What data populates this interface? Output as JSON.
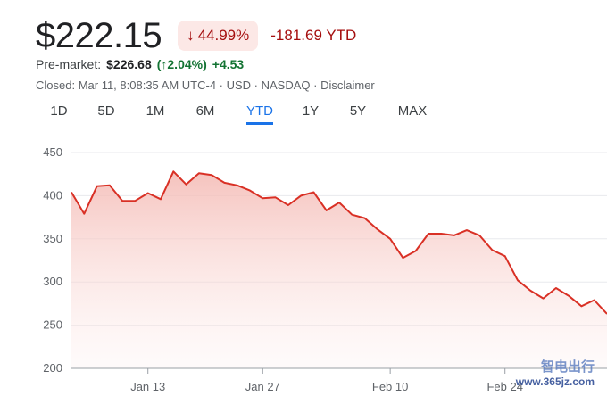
{
  "quote": {
    "price": "$222.15",
    "change_percent": "44.99%",
    "change_arrow": "↓",
    "change_abs": "-181.69 YTD"
  },
  "premarket": {
    "label": "Pre-market:",
    "price": "$226.68",
    "percent": "(↑2.04%)",
    "abs": "+4.53"
  },
  "closed": {
    "text": "Closed: Mar 11, 8:08:35 AM UTC-4 · USD · NASDAQ · ",
    "disclaimer": "Disclaimer"
  },
  "tabs": [
    {
      "label": "1D"
    },
    {
      "label": "5D"
    },
    {
      "label": "1M"
    },
    {
      "label": "6M"
    },
    {
      "label": "YTD"
    },
    {
      "label": "1Y"
    },
    {
      "label": "5Y"
    },
    {
      "label": "MAX"
    }
  ],
  "active_tab": "YTD",
  "colors": {
    "line": "#d93025",
    "fill_top": "#f4b8b2",
    "negative_text": "#a50e0e",
    "positive_text": "#137333",
    "accent": "#1a73e8"
  },
  "watermark": {
    "brand": "智电出行",
    "site": "www.365jz.com"
  },
  "chart_data": {
    "type": "area",
    "ylim": [
      200,
      450
    ],
    "yticks": [
      200,
      250,
      300,
      350,
      400,
      450
    ],
    "xticks": [
      "Jan 13",
      "Jan 27",
      "Feb 10",
      "Feb 24"
    ],
    "grid": true,
    "points": [
      {
        "date": "Jan 2",
        "value": 404
      },
      {
        "date": "Jan 3",
        "value": 379
      },
      {
        "date": "Jan 6",
        "value": 411
      },
      {
        "date": "Jan 7",
        "value": 412
      },
      {
        "date": "Jan 8",
        "value": 394
      },
      {
        "date": "Jan 10",
        "value": 394
      },
      {
        "date": "Jan 13",
        "value": 403
      },
      {
        "date": "Jan 14",
        "value": 396
      },
      {
        "date": "Jan 15",
        "value": 428
      },
      {
        "date": "Jan 16",
        "value": 413
      },
      {
        "date": "Jan 17",
        "value": 426
      },
      {
        "date": "Jan 21",
        "value": 424
      },
      {
        "date": "Jan 22",
        "value": 415
      },
      {
        "date": "Jan 23",
        "value": 412
      },
      {
        "date": "Jan 24",
        "value": 406
      },
      {
        "date": "Jan 27",
        "value": 397
      },
      {
        "date": "Jan 28",
        "value": 398
      },
      {
        "date": "Jan 29",
        "value": 389
      },
      {
        "date": "Jan 30",
        "value": 400
      },
      {
        "date": "Jan 31",
        "value": 404
      },
      {
        "date": "Feb 3",
        "value": 383
      },
      {
        "date": "Feb 4",
        "value": 392
      },
      {
        "date": "Feb 5",
        "value": 378
      },
      {
        "date": "Feb 6",
        "value": 374
      },
      {
        "date": "Feb 7",
        "value": 361
      },
      {
        "date": "Feb 10",
        "value": 350
      },
      {
        "date": "Feb 11",
        "value": 328
      },
      {
        "date": "Feb 12",
        "value": 336
      },
      {
        "date": "Feb 13",
        "value": 356
      },
      {
        "date": "Feb 14",
        "value": 356
      },
      {
        "date": "Feb 18",
        "value": 354
      },
      {
        "date": "Feb 19",
        "value": 360
      },
      {
        "date": "Feb 20",
        "value": 354
      },
      {
        "date": "Feb 21",
        "value": 337
      },
      {
        "date": "Feb 24",
        "value": 330
      },
      {
        "date": "Feb 25",
        "value": 302
      },
      {
        "date": "Feb 26",
        "value": 290
      },
      {
        "date": "Feb 27",
        "value": 281
      },
      {
        "date": "Feb 28",
        "value": 293
      },
      {
        "date": "Mar 3",
        "value": 284
      },
      {
        "date": "Mar 4",
        "value": 272
      },
      {
        "date": "Mar 5",
        "value": 279
      },
      {
        "date": "Mar 6",
        "value": 263
      }
    ]
  }
}
